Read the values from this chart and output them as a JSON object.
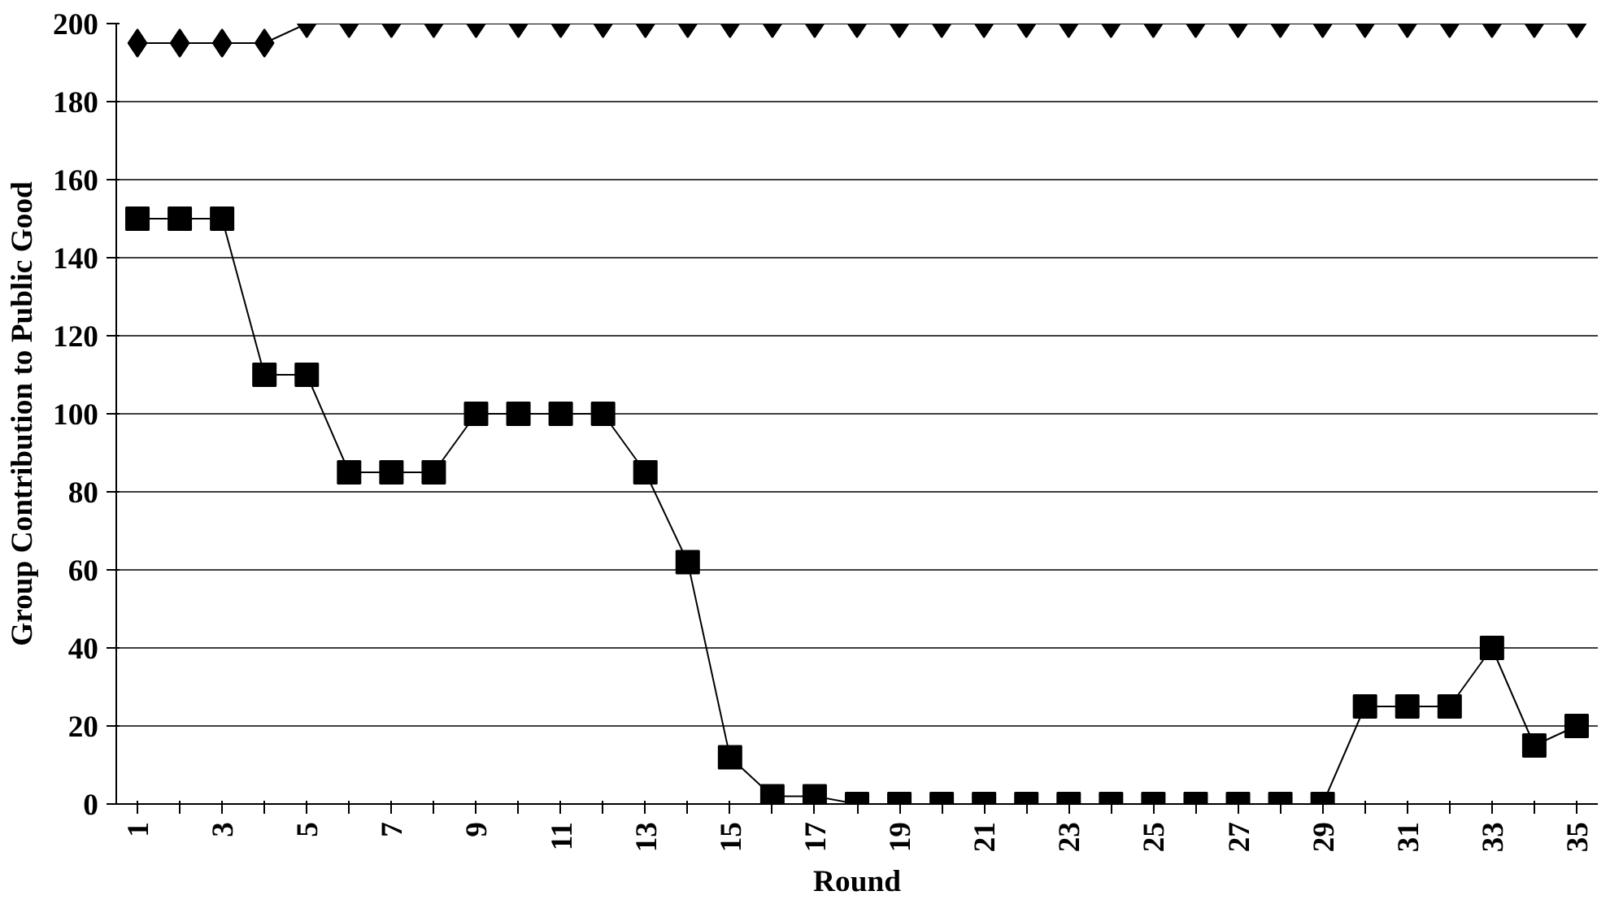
{
  "chart_data": {
    "type": "line",
    "xlabel": "Round",
    "ylabel": "Group Contribution to Public Good",
    "categories": [
      "1",
      null,
      "3",
      null,
      "5",
      null,
      "7",
      null,
      "9",
      null,
      "11",
      null,
      "13",
      null,
      "15",
      null,
      "17",
      null,
      "19",
      null,
      "21",
      null,
      "23",
      null,
      "25",
      null,
      "27",
      null,
      "29",
      null,
      "31",
      null,
      "33",
      null,
      "35"
    ],
    "series": [
      {
        "color": "#000000",
        "marker": "diamond",
        "values": [
          195,
          195,
          195,
          195,
          200,
          200,
          200,
          200,
          200,
          200,
          200,
          200,
          200,
          200,
          200,
          200,
          200,
          200,
          200,
          200,
          200,
          200,
          200,
          200,
          200,
          200,
          200,
          200,
          200,
          200,
          200,
          200,
          200,
          200,
          200
        ]
      },
      {
        "color": "#000000",
        "marker": "square",
        "values": [
          150,
          150,
          150,
          110,
          110,
          85,
          85,
          85,
          100,
          100,
          100,
          100,
          85,
          62,
          12,
          2,
          2,
          0,
          0,
          0,
          0,
          0,
          0,
          0,
          0,
          0,
          0,
          0,
          0,
          25,
          25,
          25,
          40,
          15,
          20
        ]
      }
    ],
    "ylim": [
      0,
      200
    ],
    "yticks": [
      0,
      20,
      40,
      60,
      80,
      100,
      120,
      140,
      160,
      180,
      200
    ],
    "grid": "y",
    "line_style": "solid"
  }
}
